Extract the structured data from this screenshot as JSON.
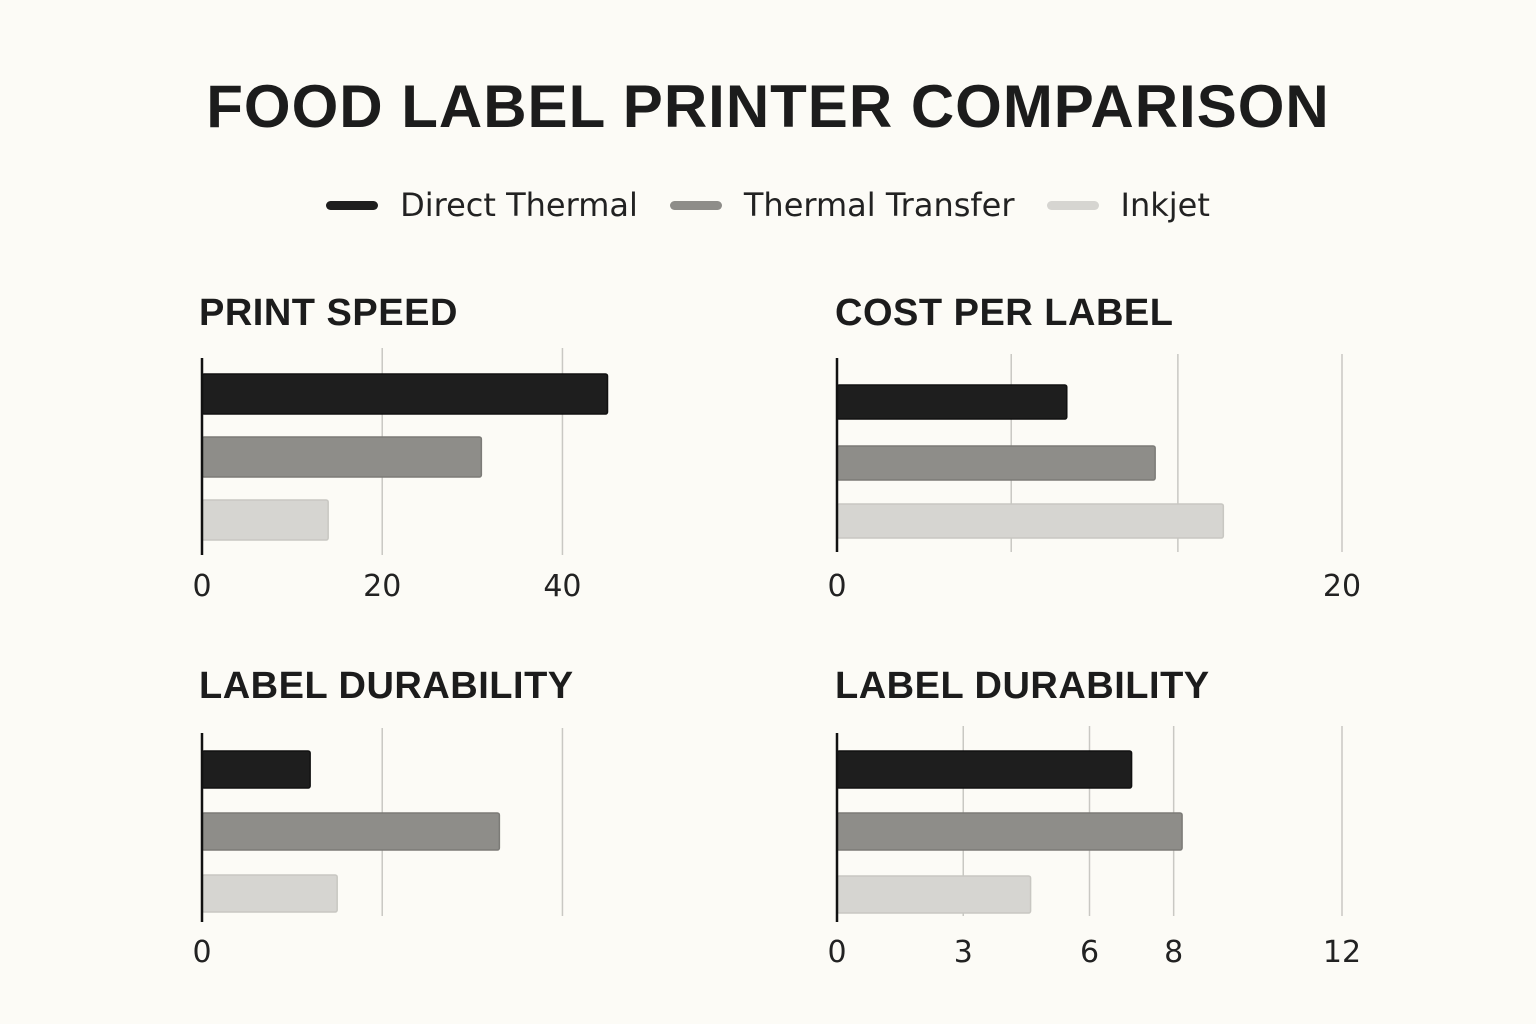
{
  "title": "FOOD LABEL PRINTER COMPARISON",
  "legend": [
    {
      "label": "Direct Thermal",
      "color": "#1e1e1e"
    },
    {
      "label": "Thermal Transfer",
      "color": "#8e8d89"
    },
    {
      "label": "Inkjet",
      "color": "#d6d5d1"
    }
  ],
  "chart_data": [
    {
      "type": "bar",
      "orientation": "horizontal",
      "title": "PRINT SPEED",
      "series": [
        {
          "name": "Direct Thermal",
          "value": 45
        },
        {
          "name": "Thermal Transfer",
          "value": 31
        },
        {
          "name": "Inkjet",
          "value": 14
        }
      ],
      "xlim": [
        0,
        44.5
      ],
      "gridlines": [
        20,
        40
      ],
      "ticks": [
        {
          "value": 0,
          "label": "0"
        },
        {
          "value": 20,
          "label": "20"
        },
        {
          "value": 40,
          "label": "40"
        }
      ]
    },
    {
      "type": "bar",
      "orientation": "horizontal",
      "title": "COST PER LABEL",
      "series": [
        {
          "name": "Direct Thermal",
          "value": 9.1
        },
        {
          "name": "Thermal Transfer",
          "value": 12.6
        },
        {
          "name": "Inkjet",
          "value": 15.3
        }
      ],
      "xlim": [
        0,
        20
      ],
      "gridlines": [
        6.9,
        13.5,
        20
      ],
      "ticks": [
        {
          "value": 0,
          "label": "0"
        },
        {
          "value": 20,
          "label": "20"
        }
      ]
    },
    {
      "type": "bar",
      "orientation": "horizontal",
      "title": "LABEL DURABILITY",
      "series": [
        {
          "name": "Direct Thermal",
          "value": 12
        },
        {
          "name": "Thermal Transfer",
          "value": 33
        },
        {
          "name": "Inkjet",
          "value": 15
        }
      ],
      "xlim": [
        0,
        44.5
      ],
      "gridlines": [
        20,
        40
      ],
      "ticks": [
        {
          "value": 0,
          "label": "0"
        }
      ]
    },
    {
      "type": "bar",
      "orientation": "horizontal",
      "title": "LABEL DURABILITY",
      "series": [
        {
          "name": "Direct Thermal",
          "value": 7
        },
        {
          "name": "Thermal Transfer",
          "value": 8.2
        },
        {
          "name": "Inkjet",
          "value": 4.6
        }
      ],
      "xlim": [
        0,
        12
      ],
      "gridlines": [
        3,
        6,
        8,
        12
      ],
      "ticks": [
        {
          "value": 0,
          "label": "0"
        },
        {
          "value": 3,
          "label": "3"
        },
        {
          "value": 6,
          "label": "6"
        },
        {
          "value": 8,
          "label": "8"
        },
        {
          "value": 12,
          "label": "12"
        }
      ]
    }
  ]
}
